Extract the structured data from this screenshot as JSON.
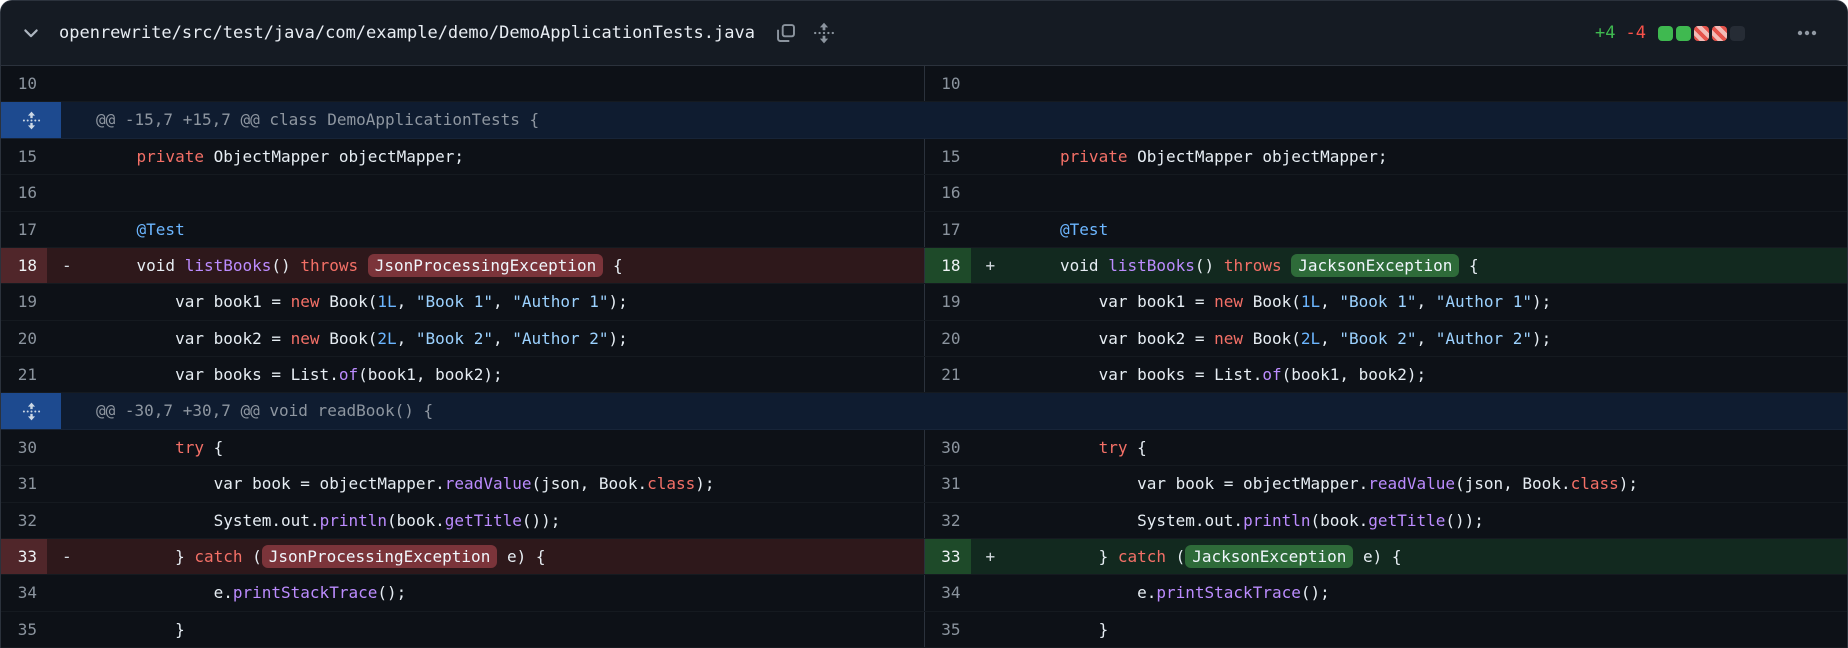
{
  "header": {
    "file_path": "openrewrite/src/test/java/com/example/demo/DemoApplicationTests.java",
    "additions": "+4",
    "deletions": "-4",
    "diffstat": [
      "add",
      "add",
      "del",
      "del",
      "empty"
    ],
    "icons": [
      "chevron-down-icon",
      "copy-icon",
      "unfold-vertical-icon",
      "kebab-menu-icon"
    ]
  },
  "colors": {
    "background": "#0d1117",
    "header_background": "#151b23",
    "additions_green": "#3fb950",
    "deletions_red": "#f85149",
    "deleted_line_bg": "#2e181b",
    "deleted_gutter_bg": "#50262a",
    "deleted_word_bg": "#7b343a",
    "added_line_bg": "#12291f",
    "added_gutter_bg": "#1e4a29",
    "added_word_bg": "#2e6b39",
    "hunk_row_bg": "#0f1c30",
    "expander_blue": "#1d4a8f",
    "keyword": "#f47067",
    "function": "#bc8cff",
    "string": "#9cd2ff",
    "number": "#6cb6ff",
    "annotation": "#6cb6ff"
  },
  "diff": {
    "rows": [
      {
        "type": "pair",
        "left": {
          "num": "10",
          "state": "ctx",
          "sign": "",
          "code": []
        },
        "right": {
          "num": "10",
          "state": "ctx",
          "sign": "",
          "code": []
        }
      },
      {
        "type": "hunk",
        "text": "@@ -15,7 +15,7 @@ class DemoApplicationTests {"
      },
      {
        "type": "pair",
        "left": {
          "num": "15",
          "state": "ctx",
          "sign": "",
          "code": [
            [
              "p",
              "    "
            ],
            [
              "k",
              "private"
            ],
            [
              "p",
              " ObjectMapper objectMapper;"
            ]
          ]
        },
        "right": {
          "num": "15",
          "state": "ctx",
          "sign": "",
          "code": [
            [
              "p",
              "    "
            ],
            [
              "k",
              "private"
            ],
            [
              "p",
              " ObjectMapper objectMapper;"
            ]
          ]
        }
      },
      {
        "type": "pair",
        "left": {
          "num": "16",
          "state": "ctx",
          "sign": "",
          "code": []
        },
        "right": {
          "num": "16",
          "state": "ctx",
          "sign": "",
          "code": []
        }
      },
      {
        "type": "pair",
        "left": {
          "num": "17",
          "state": "ctx",
          "sign": "",
          "code": [
            [
              "p",
              "    "
            ],
            [
              "a",
              "@Test"
            ]
          ]
        },
        "right": {
          "num": "17",
          "state": "ctx",
          "sign": "",
          "code": [
            [
              "p",
              "    "
            ],
            [
              "a",
              "@Test"
            ]
          ]
        }
      },
      {
        "type": "pair",
        "left": {
          "num": "18",
          "state": "del",
          "sign": "-",
          "code": [
            [
              "p",
              "    void "
            ],
            [
              "f",
              "listBooks"
            ],
            [
              "p",
              "() "
            ],
            [
              "k",
              "throws"
            ],
            [
              "p",
              " "
            ],
            [
              "hl",
              "JsonProcessingException"
            ],
            [
              "p",
              " {"
            ]
          ]
        },
        "right": {
          "num": "18",
          "state": "add",
          "sign": "+",
          "code": [
            [
              "p",
              "    void "
            ],
            [
              "f",
              "listBooks"
            ],
            [
              "p",
              "() "
            ],
            [
              "k",
              "throws"
            ],
            [
              "p",
              " "
            ],
            [
              "hl",
              "JacksonException"
            ],
            [
              "p",
              " {"
            ]
          ]
        }
      },
      {
        "type": "pair",
        "left": {
          "num": "19",
          "state": "ctx",
          "sign": "",
          "code": [
            [
              "p",
              "        var book1 = "
            ],
            [
              "k",
              "new"
            ],
            [
              "p",
              " Book("
            ],
            [
              "n",
              "1L"
            ],
            [
              "p",
              ", "
            ],
            [
              "s",
              "\"Book 1\""
            ],
            [
              "p",
              ", "
            ],
            [
              "s",
              "\"Author 1\""
            ],
            [
              "p",
              ");"
            ]
          ]
        },
        "right": {
          "num": "19",
          "state": "ctx",
          "sign": "",
          "code": [
            [
              "p",
              "        var book1 = "
            ],
            [
              "k",
              "new"
            ],
            [
              "p",
              " Book("
            ],
            [
              "n",
              "1L"
            ],
            [
              "p",
              ", "
            ],
            [
              "s",
              "\"Book 1\""
            ],
            [
              "p",
              ", "
            ],
            [
              "s",
              "\"Author 1\""
            ],
            [
              "p",
              ");"
            ]
          ]
        }
      },
      {
        "type": "pair",
        "left": {
          "num": "20",
          "state": "ctx",
          "sign": "",
          "code": [
            [
              "p",
              "        var book2 = "
            ],
            [
              "k",
              "new"
            ],
            [
              "p",
              " Book("
            ],
            [
              "n",
              "2L"
            ],
            [
              "p",
              ", "
            ],
            [
              "s",
              "\"Book 2\""
            ],
            [
              "p",
              ", "
            ],
            [
              "s",
              "\"Author 2\""
            ],
            [
              "p",
              ");"
            ]
          ]
        },
        "right": {
          "num": "20",
          "state": "ctx",
          "sign": "",
          "code": [
            [
              "p",
              "        var book2 = "
            ],
            [
              "k",
              "new"
            ],
            [
              "p",
              " Book("
            ],
            [
              "n",
              "2L"
            ],
            [
              "p",
              ", "
            ],
            [
              "s",
              "\"Book 2\""
            ],
            [
              "p",
              ", "
            ],
            [
              "s",
              "\"Author 2\""
            ],
            [
              "p",
              ");"
            ]
          ]
        }
      },
      {
        "type": "pair",
        "left": {
          "num": "21",
          "state": "ctx",
          "sign": "",
          "code": [
            [
              "p",
              "        var books = List."
            ],
            [
              "f",
              "of"
            ],
            [
              "p",
              "(book1, book2);"
            ]
          ]
        },
        "right": {
          "num": "21",
          "state": "ctx",
          "sign": "",
          "code": [
            [
              "p",
              "        var books = List."
            ],
            [
              "f",
              "of"
            ],
            [
              "p",
              "(book1, book2);"
            ]
          ]
        }
      },
      {
        "type": "hunk",
        "text": "@@ -30,7 +30,7 @@ void readBook() {"
      },
      {
        "type": "pair",
        "left": {
          "num": "30",
          "state": "ctx",
          "sign": "",
          "code": [
            [
              "p",
              "        "
            ],
            [
              "k",
              "try"
            ],
            [
              "p",
              " {"
            ]
          ]
        },
        "right": {
          "num": "30",
          "state": "ctx",
          "sign": "",
          "code": [
            [
              "p",
              "        "
            ],
            [
              "k",
              "try"
            ],
            [
              "p",
              " {"
            ]
          ]
        }
      },
      {
        "type": "pair",
        "left": {
          "num": "31",
          "state": "ctx",
          "sign": "",
          "code": [
            [
              "p",
              "            var book = objectMapper."
            ],
            [
              "f",
              "readValue"
            ],
            [
              "p",
              "(json, Book."
            ],
            [
              "k",
              "class"
            ],
            [
              "p",
              ");"
            ]
          ]
        },
        "right": {
          "num": "31",
          "state": "ctx",
          "sign": "",
          "code": [
            [
              "p",
              "            var book = objectMapper."
            ],
            [
              "f",
              "readValue"
            ],
            [
              "p",
              "(json, Book."
            ],
            [
              "k",
              "class"
            ],
            [
              "p",
              ");"
            ]
          ]
        }
      },
      {
        "type": "pair",
        "left": {
          "num": "32",
          "state": "ctx",
          "sign": "",
          "code": [
            [
              "p",
              "            System.out."
            ],
            [
              "f",
              "println"
            ],
            [
              "p",
              "(book."
            ],
            [
              "f",
              "getTitle"
            ],
            [
              "p",
              "());"
            ]
          ]
        },
        "right": {
          "num": "32",
          "state": "ctx",
          "sign": "",
          "code": [
            [
              "p",
              "            System.out."
            ],
            [
              "f",
              "println"
            ],
            [
              "p",
              "(book."
            ],
            [
              "f",
              "getTitle"
            ],
            [
              "p",
              "());"
            ]
          ]
        }
      },
      {
        "type": "pair",
        "left": {
          "num": "33",
          "state": "del",
          "sign": "-",
          "code": [
            [
              "p",
              "        } "
            ],
            [
              "k",
              "catch"
            ],
            [
              "p",
              " ("
            ],
            [
              "hl",
              "JsonProcessingException"
            ],
            [
              "p",
              " e) {"
            ]
          ]
        },
        "right": {
          "num": "33",
          "state": "add",
          "sign": "+",
          "code": [
            [
              "p",
              "        } "
            ],
            [
              "k",
              "catch"
            ],
            [
              "p",
              " ("
            ],
            [
              "hl",
              "JacksonException"
            ],
            [
              "p",
              " e) {"
            ]
          ]
        }
      },
      {
        "type": "pair",
        "left": {
          "num": "34",
          "state": "ctx",
          "sign": "",
          "code": [
            [
              "p",
              "            e."
            ],
            [
              "f",
              "printStackTrace"
            ],
            [
              "p",
              "();"
            ]
          ]
        },
        "right": {
          "num": "34",
          "state": "ctx",
          "sign": "",
          "code": [
            [
              "p",
              "            e."
            ],
            [
              "f",
              "printStackTrace"
            ],
            [
              "p",
              "();"
            ]
          ]
        }
      },
      {
        "type": "pair",
        "left": {
          "num": "35",
          "state": "ctx",
          "sign": "",
          "code": [
            [
              "p",
              "        }"
            ]
          ]
        },
        "right": {
          "num": "35",
          "state": "ctx",
          "sign": "",
          "code": [
            [
              "p",
              "        }"
            ]
          ]
        }
      }
    ]
  }
}
